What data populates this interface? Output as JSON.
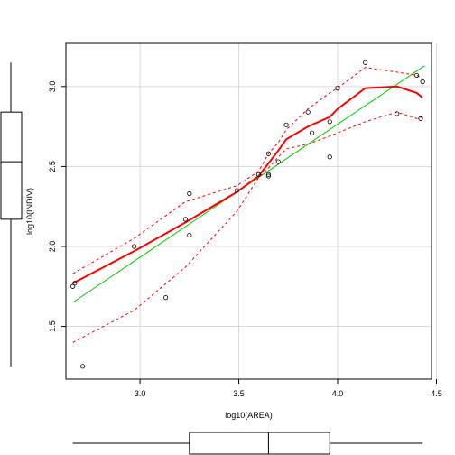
{
  "chart_data": {
    "type": "scatter",
    "title": "",
    "xlabel": "log10(AREA)",
    "ylabel": "log10(INDIV)",
    "xlim": [
      2.625,
      4.475
    ],
    "ylim": [
      1.17,
      3.27
    ],
    "grid": true,
    "x_ticks": [
      3.0,
      3.5,
      4.0,
      4.5
    ],
    "x_tick_labels": [
      "3.0",
      "3.5",
      "4.0",
      "4.5"
    ],
    "y_ticks": [
      1.5,
      2.0,
      2.5,
      3.0
    ],
    "y_tick_labels": [
      "1.5",
      "2.0",
      "2.5",
      "3.0"
    ],
    "points": [
      {
        "x": 2.66,
        "y": 1.75
      },
      {
        "x": 2.67,
        "y": 1.77
      },
      {
        "x": 2.71,
        "y": 1.25
      },
      {
        "x": 2.97,
        "y": 2.0
      },
      {
        "x": 3.13,
        "y": 1.68
      },
      {
        "x": 3.23,
        "y": 2.17
      },
      {
        "x": 3.25,
        "y": 2.07
      },
      {
        "x": 3.25,
        "y": 2.33
      },
      {
        "x": 3.49,
        "y": 2.35
      },
      {
        "x": 3.6,
        "y": 2.45
      },
      {
        "x": 3.65,
        "y": 2.58
      },
      {
        "x": 3.65,
        "y": 2.44
      },
      {
        "x": 3.65,
        "y": 2.45
      },
      {
        "x": 3.7,
        "y": 2.53
      },
      {
        "x": 3.74,
        "y": 2.76
      },
      {
        "x": 3.85,
        "y": 2.84
      },
      {
        "x": 3.87,
        "y": 2.71
      },
      {
        "x": 3.96,
        "y": 2.56
      },
      {
        "x": 3.96,
        "y": 2.78
      },
      {
        "x": 4.0,
        "y": 2.99
      },
      {
        "x": 4.14,
        "y": 3.15
      },
      {
        "x": 4.3,
        "y": 2.83
      },
      {
        "x": 4.4,
        "y": 3.07
      },
      {
        "x": 4.42,
        "y": 2.8
      },
      {
        "x": 4.43,
        "y": 3.03
      }
    ],
    "fit_line": {
      "color": "#00cc00",
      "x": [
        2.66,
        4.44
      ],
      "y": [
        1.65,
        3.13
      ]
    },
    "smooth_line": {
      "color": "#ff0000",
      "x": [
        2.66,
        2.97,
        3.23,
        3.49,
        3.6,
        3.65,
        3.7,
        3.74,
        3.85,
        3.96,
        4.0,
        4.14,
        4.3,
        4.4,
        4.43
      ],
      "y": [
        1.77,
        1.97,
        2.15,
        2.34,
        2.44,
        2.52,
        2.6,
        2.67,
        2.75,
        2.81,
        2.86,
        2.99,
        3.0,
        2.96,
        2.93
      ]
    },
    "band_upper": {
      "color": "#ff0000",
      "x": [
        2.66,
        2.97,
        3.23,
        3.49,
        3.6,
        3.65,
        3.7,
        3.74,
        3.85,
        3.96,
        4.0,
        4.14,
        4.3,
        4.4,
        4.43
      ],
      "y": [
        1.83,
        2.05,
        2.28,
        2.38,
        2.47,
        2.58,
        2.65,
        2.73,
        2.86,
        2.96,
        2.99,
        3.12,
        3.09,
        3.07,
        3.05
      ]
    },
    "band_lower": {
      "color": "#ff0000",
      "x": [
        2.66,
        2.97,
        3.23,
        3.49,
        3.6,
        3.65,
        3.7,
        3.74,
        3.85,
        3.96,
        4.0,
        4.14,
        4.3,
        4.4,
        4.43
      ],
      "y": [
        1.4,
        1.6,
        1.87,
        2.22,
        2.43,
        2.49,
        2.56,
        2.61,
        2.64,
        2.69,
        2.71,
        2.78,
        2.84,
        2.8,
        2.81
      ]
    },
    "boxplot_x": {
      "min": 2.66,
      "q1": 3.25,
      "median": 3.65,
      "q3": 3.96,
      "max": 4.43
    },
    "boxplot_y": {
      "min": 1.25,
      "q1": 2.17,
      "median": 2.53,
      "q3": 2.84,
      "max": 3.15
    }
  }
}
